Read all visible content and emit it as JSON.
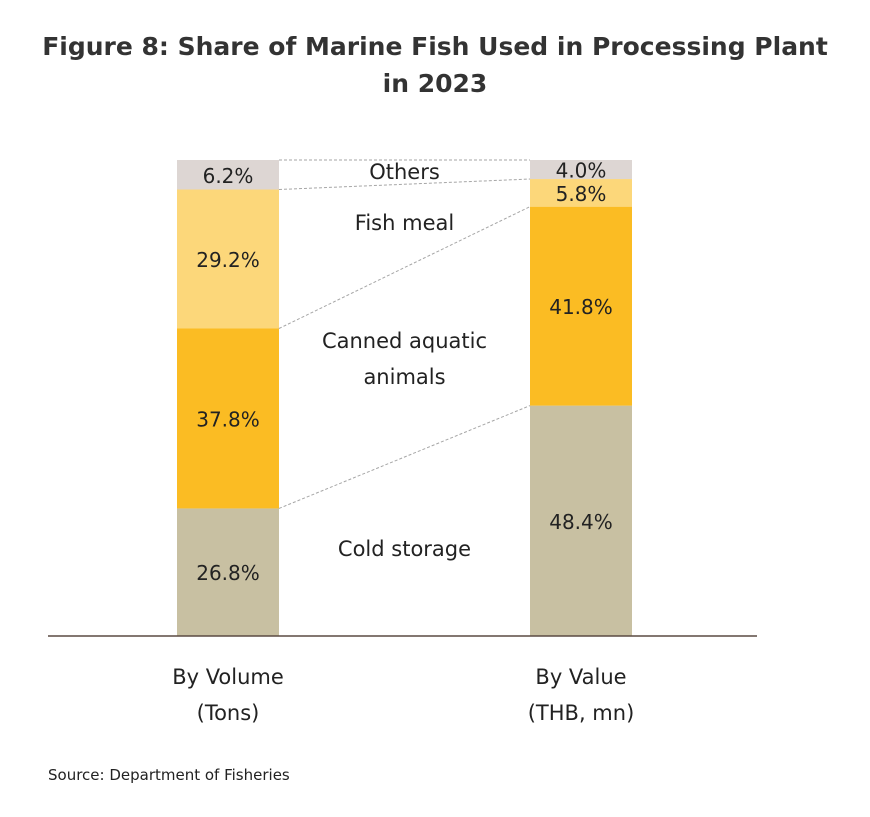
{
  "title": {
    "line1": "Figure 8: Share of Marine Fish Used in Processing Plant",
    "line2": "in 2023"
  },
  "source": "Source: Department of Fisheries",
  "chart_data": {
    "type": "bar",
    "stacked": true,
    "unit": "%",
    "categories": [
      "By Volume\n(Tons)",
      "By Value\n(THB, mn)"
    ],
    "series": [
      {
        "name": "Cold storage",
        "values": [
          26.8,
          48.4
        ],
        "color": "#c8c0a2",
        "label_lines": [
          "Cold storage"
        ]
      },
      {
        "name": "Canned aquatic animals",
        "values": [
          37.8,
          41.8
        ],
        "color": "#fbbc23",
        "label_lines": [
          "Canned aquatic",
          "animals"
        ]
      },
      {
        "name": "Fish meal",
        "values": [
          29.2,
          5.8
        ],
        "color": "#fcd77a",
        "label_lines": [
          "Fish meal"
        ]
      },
      {
        "name": "Others",
        "values": [
          6.2,
          4.0
        ],
        "color": "#ddd6d3",
        "label_lines": [
          "Others"
        ]
      }
    ],
    "data_labels": [
      [
        "26.8%",
        "37.8%",
        "29.2%",
        "6.2%"
      ],
      [
        "48.4%",
        "41.8%",
        "5.8%",
        "4.0%"
      ]
    ],
    "ylim": [
      0,
      100
    ],
    "grid": false,
    "legend": "inline between bars"
  }
}
